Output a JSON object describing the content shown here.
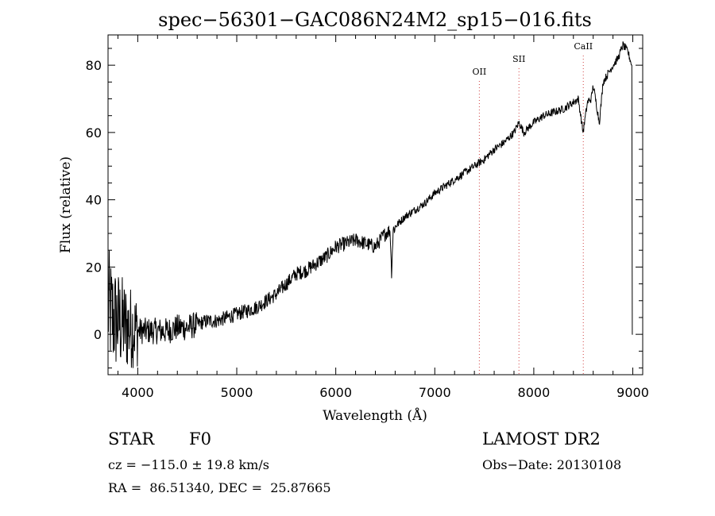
{
  "chart_data": {
    "type": "line",
    "title": "spec−56301−GAC086N24M2_sp15−016.fits",
    "xlabel": "Wavelength (Å)",
    "ylabel": "Flux (relative)",
    "xlim": [
      3700,
      9100
    ],
    "ylim": [
      -12,
      89
    ],
    "xticks": [
      4000,
      5000,
      6000,
      7000,
      8000,
      9000
    ],
    "yticks": [
      0,
      20,
      40,
      60,
      80
    ],
    "grid": false,
    "series": [
      {
        "x": [
          3700,
          3750,
          3800,
          3850,
          3900,
          3950,
          4000,
          4100,
          4200,
          4300,
          4400,
          4500,
          4600,
          4700,
          4800,
          4900,
          5000,
          5100,
          5200,
          5300,
          5400,
          5500,
          5600,
          5700,
          5800,
          5900,
          6000,
          6100,
          6200,
          6300,
          6400,
          6500,
          6550,
          6563,
          6580,
          6600,
          6700,
          6800,
          6900,
          7000,
          7100,
          7200,
          7300,
          7400,
          7500,
          7600,
          7700,
          7800,
          7850,
          7900,
          8000,
          8100,
          8200,
          8300,
          8400,
          8450,
          8498,
          8542,
          8580,
          8600,
          8662,
          8700,
          8800,
          8850,
          8900,
          8950,
          8990,
          9000
        ],
        "y": [
          8,
          5,
          4,
          3,
          2,
          2,
          1,
          1,
          1,
          1,
          2,
          2,
          3,
          4,
          4,
          5,
          6,
          7,
          8,
          10,
          12,
          15,
          18,
          19,
          21,
          23,
          26,
          27,
          28,
          27,
          26,
          30,
          31,
          18,
          31,
          32,
          35,
          37,
          39,
          42,
          44,
          46,
          48,
          50,
          52,
          55,
          57,
          60,
          63,
          60,
          63,
          65,
          66,
          67,
          69,
          70,
          60,
          69,
          70,
          74,
          63,
          75,
          80,
          82,
          86,
          84,
          80,
          0
        ]
      }
    ],
    "annotations": [
      {
        "label": "OII",
        "x": 7450
      },
      {
        "label": "SII",
        "x": 7850
      },
      {
        "label": "CaII",
        "x": 8500
      }
    ]
  },
  "info": {
    "object_class": "STAR",
    "subclass": "F0",
    "survey": "LAMOST DR2",
    "redshift": "cz = −115.0 ± 19.8 km/s",
    "obs_date": "Obs−Date: 20130108",
    "coords": "RA =  86.51340, DEC =  25.87665"
  }
}
